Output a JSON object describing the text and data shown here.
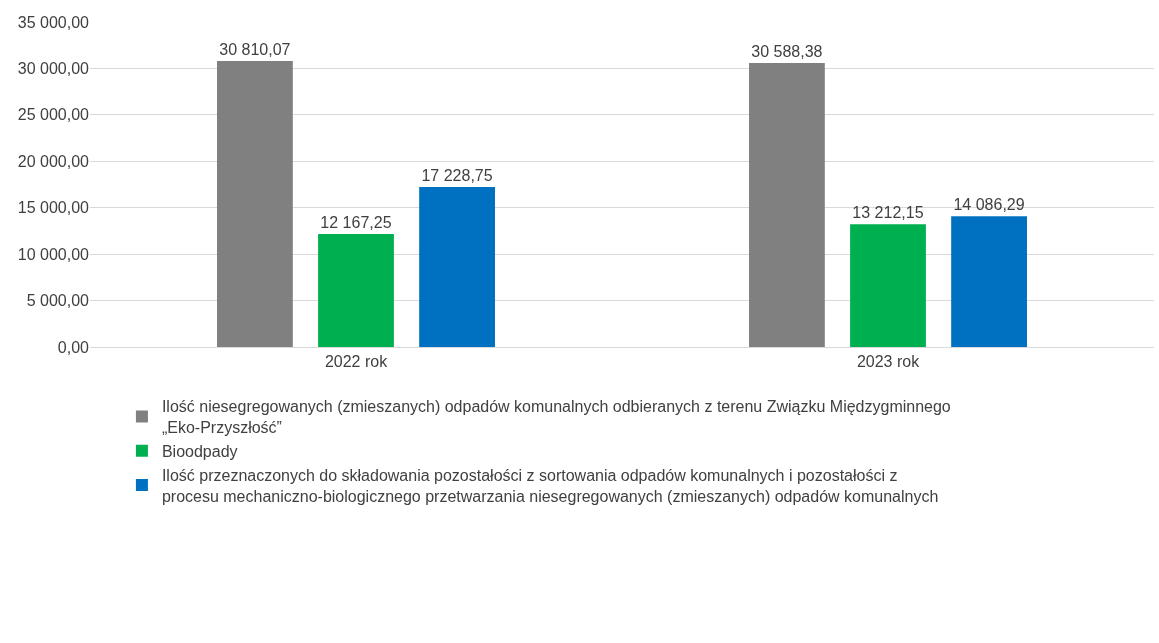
{
  "chart_data": {
    "type": "bar",
    "categories": [
      "2022 rok",
      "2023 rok"
    ],
    "series": [
      {
        "name": "Ilość niesegregowanych (zmieszanych) odpadów komunalnych odbieranych z terenu Związku Międzygminnego „Eko-Przyszłość”",
        "color": "#808080",
        "values": [
          30810.07,
          30588.38
        ],
        "value_labels": [
          "30 810,07",
          "30 588,38"
        ]
      },
      {
        "name": "Bioodpady",
        "color": "#00b050",
        "values": [
          12167.25,
          13212.15
        ],
        "value_labels": [
          "12 167,25",
          "13 212,15"
        ]
      },
      {
        "name": "Ilość przeznaczonych do składowania pozostałości z sortowania odpadów komunalnych i pozostałości z procesu mechaniczno-biologicznego przetwarzania niesegregowanych (zmieszanych) odpadów komunalnych",
        "color": "#0070c0",
        "values": [
          17228.75,
          14086.29
        ],
        "value_labels": [
          "17 228,75",
          "14 086,29"
        ]
      }
    ],
    "ylim": [
      0,
      35000
    ],
    "yticks": [
      {
        "value": 0,
        "label": "0,00"
      },
      {
        "value": 5000,
        "label": "5 000,00"
      },
      {
        "value": 10000,
        "label": "10 000,00"
      },
      {
        "value": 15000,
        "label": "15 000,00"
      },
      {
        "value": 20000,
        "label": "20 000,00"
      },
      {
        "value": 25000,
        "label": "25 000,00"
      },
      {
        "value": 30000,
        "label": "30 000,00"
      },
      {
        "value": 35000,
        "label": "35 000,00"
      }
    ],
    "grid": "y",
    "legend": "bottom"
  }
}
